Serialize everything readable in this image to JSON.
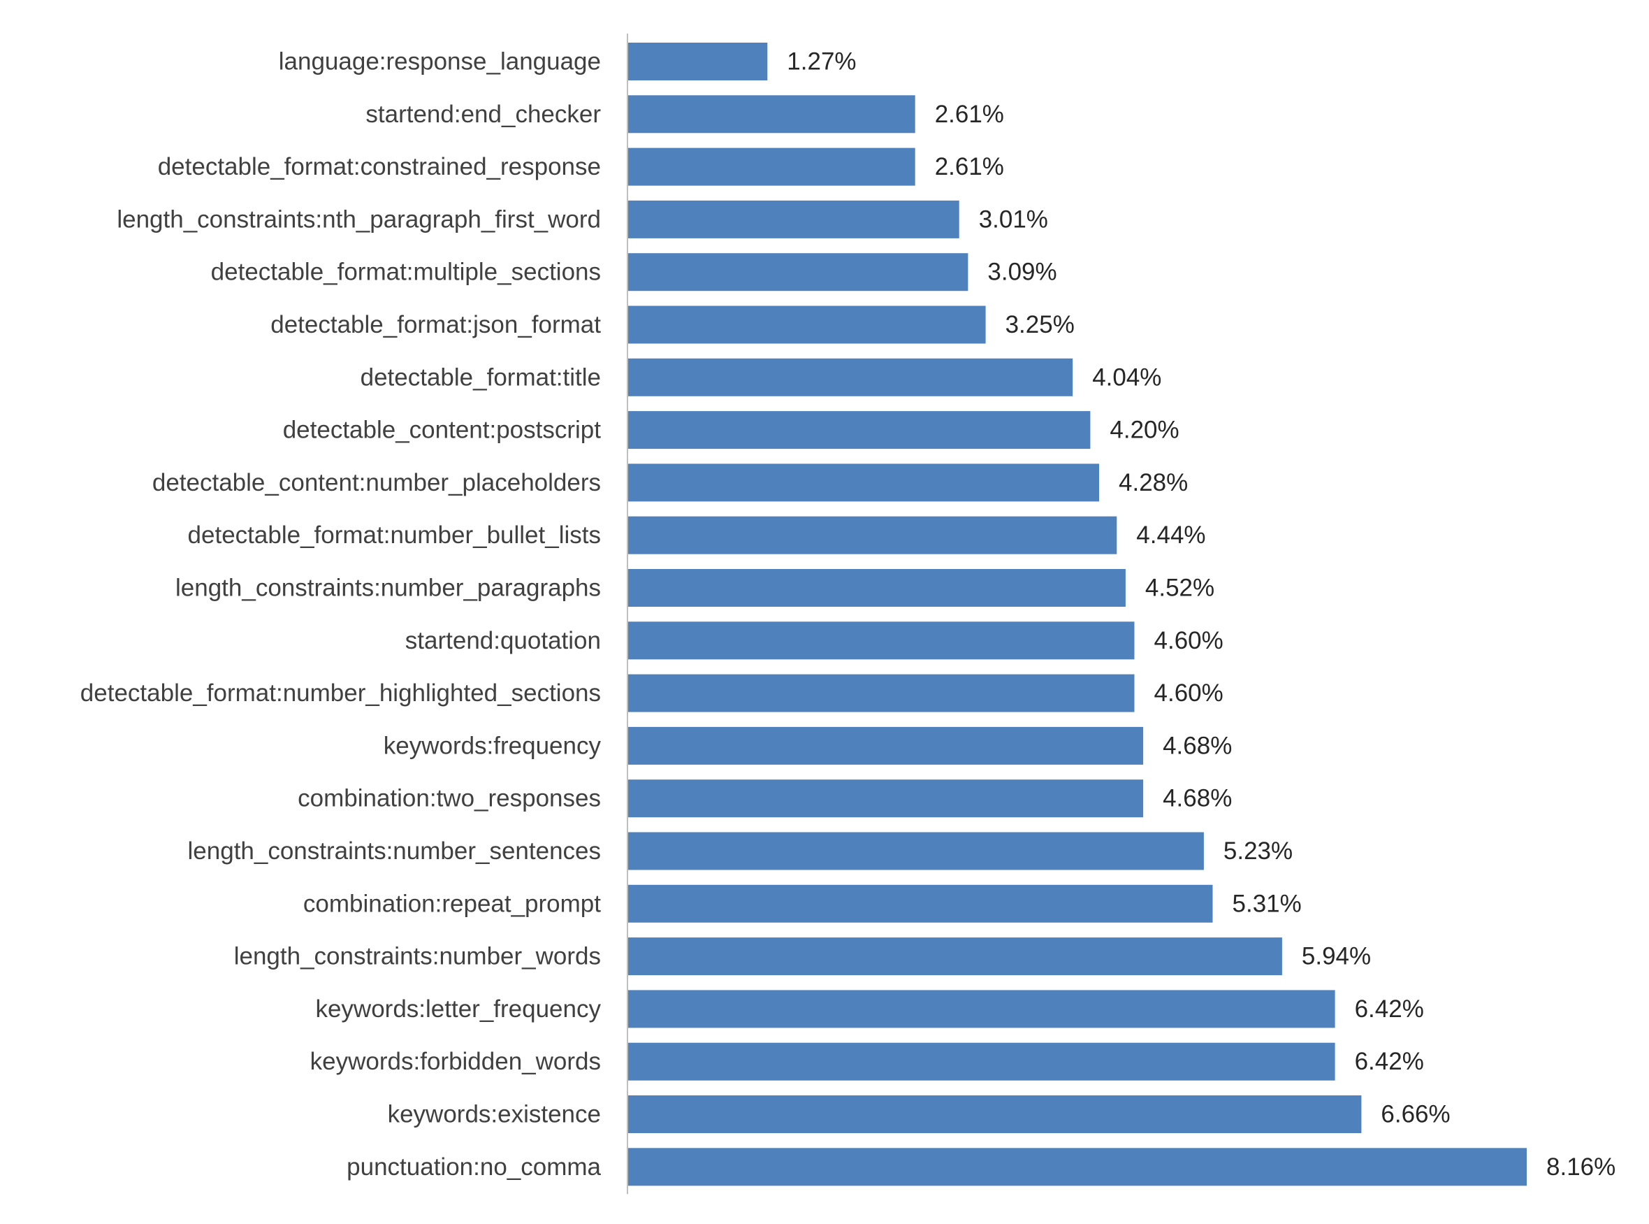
{
  "chart_data": {
    "type": "bar",
    "orientation": "horizontal",
    "title": "",
    "xlabel": "",
    "ylabel": "",
    "grid": false,
    "legend": "none",
    "bar_color": "#4f81bd",
    "axis_color": "#bfbfbf",
    "label_color": "#404040",
    "value_label_color": "#262626",
    "xlim": [
      0,
      8.16
    ],
    "categories": [
      "language:response_language",
      "startend:end_checker",
      "detectable_format:constrained_response",
      "length_constraints:nth_paragraph_first_word",
      "detectable_format:multiple_sections",
      "detectable_format:json_format",
      "detectable_format:title",
      "detectable_content:postscript",
      "detectable_content:number_placeholders",
      "detectable_format:number_bullet_lists",
      "length_constraints:number_paragraphs",
      "startend:quotation",
      "detectable_format:number_highlighted_sections",
      "keywords:frequency",
      "combination:two_responses",
      "length_constraints:number_sentences",
      "combination:repeat_prompt",
      "length_constraints:number_words",
      "keywords:letter_frequency",
      "keywords:forbidden_words",
      "keywords:existence",
      "punctuation:no_comma"
    ],
    "values": [
      1.27,
      2.61,
      2.61,
      3.01,
      3.09,
      3.25,
      4.04,
      4.2,
      4.28,
      4.44,
      4.52,
      4.6,
      4.6,
      4.68,
      4.68,
      5.23,
      5.31,
      5.94,
      6.42,
      6.42,
      6.66,
      8.16
    ],
    "value_labels": [
      "1.27%",
      "2.61%",
      "2.61%",
      "3.01%",
      "3.09%",
      "3.25%",
      "4.04%",
      "4.20%",
      "4.28%",
      "4.44%",
      "4.52%",
      "4.60%",
      "4.60%",
      "4.68%",
      "4.68%",
      "5.23%",
      "5.31%",
      "5.94%",
      "6.42%",
      "6.42%",
      "6.66%",
      "8.16%"
    ]
  }
}
